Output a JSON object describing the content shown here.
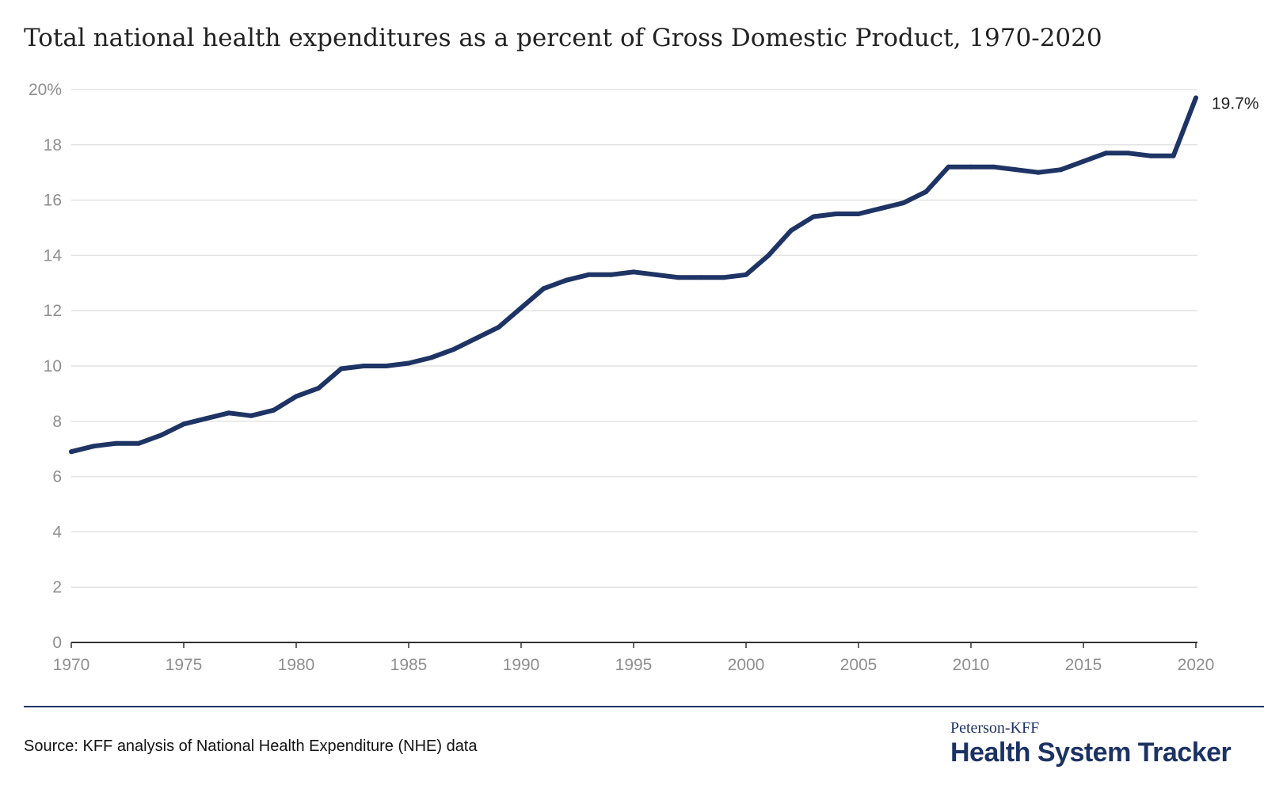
{
  "chart_data": {
    "type": "line",
    "title": "Total national health expenditures as a percent of Gross Domestic Product, 1970-2020",
    "xlabel": "",
    "ylabel": "",
    "x": [
      1970,
      1971,
      1972,
      1973,
      1974,
      1975,
      1976,
      1977,
      1978,
      1979,
      1980,
      1981,
      1982,
      1983,
      1984,
      1985,
      1986,
      1987,
      1988,
      1989,
      1990,
      1991,
      1992,
      1993,
      1994,
      1995,
      1996,
      1997,
      1998,
      1999,
      2000,
      2001,
      2002,
      2003,
      2004,
      2005,
      2006,
      2007,
      2008,
      2009,
      2010,
      2011,
      2012,
      2013,
      2014,
      2015,
      2016,
      2017,
      2018,
      2019,
      2020
    ],
    "series": [
      {
        "values": [
          6.9,
          7.1,
          7.2,
          7.2,
          7.5,
          7.9,
          8.1,
          8.3,
          8.2,
          8.4,
          8.9,
          9.2,
          9.9,
          10.0,
          10.0,
          10.1,
          10.3,
          10.6,
          11.0,
          11.4,
          12.1,
          12.8,
          13.1,
          13.3,
          13.3,
          13.4,
          13.3,
          13.2,
          13.2,
          13.2,
          13.3,
          14.0,
          14.9,
          15.4,
          15.5,
          15.5,
          15.7,
          15.9,
          16.3,
          17.2,
          17.2,
          17.2,
          17.1,
          17.0,
          17.1,
          17.4,
          17.7,
          17.7,
          17.6,
          17.6,
          19.7
        ],
        "color": "#1e3465"
      }
    ],
    "xlim": [
      1970,
      2020
    ],
    "ylim": [
      0,
      20
    ],
    "y_ticks": [
      0,
      2,
      4,
      6,
      8,
      10,
      12,
      14,
      16,
      18,
      20
    ],
    "y_tick_labels": [
      "0",
      "2",
      "4",
      "6",
      "8",
      "10",
      "12",
      "14",
      "16",
      "18",
      "20%"
    ],
    "x_ticks": [
      1970,
      1975,
      1980,
      1985,
      1990,
      1995,
      2000,
      2005,
      2010,
      2015,
      2020
    ],
    "x_tick_labels": [
      "1970",
      "1975",
      "1980",
      "1985",
      "1990",
      "1995",
      "2000",
      "2005",
      "2010",
      "2015",
      "2020"
    ],
    "end_label": "19.7%",
    "grid": true,
    "legend": "none"
  },
  "footer": {
    "source": "Source: KFF analysis of National Health Expenditure (NHE) data",
    "brand_top": "Peterson-KFF",
    "brand_main": "Health System Tracker"
  }
}
